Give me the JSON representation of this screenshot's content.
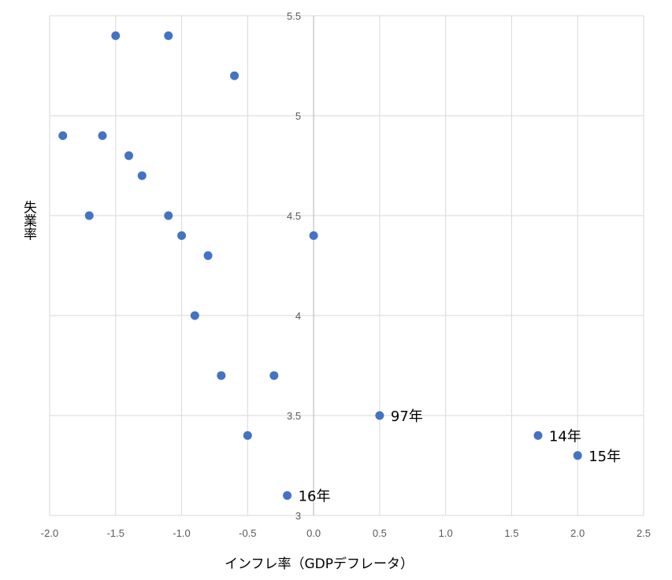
{
  "chart_data": {
    "type": "scatter",
    "title": "",
    "xlabel": "インフレ率（GDPデフレータ）",
    "ylabel": "失業率",
    "xlim": [
      -2.0,
      2.5
    ],
    "ylim": [
      3.0,
      5.5
    ],
    "x_ticks": [
      "-2.0",
      "-1.5",
      "-1.0",
      "-0.5",
      "0.0",
      "0.5",
      "1.0",
      "1.5",
      "2.0",
      "2.5"
    ],
    "y_ticks": [
      "3",
      "3.5",
      "4",
      "4.5",
      "5",
      "5.5"
    ],
    "grid": true,
    "marker_color": "#4472c4",
    "points": [
      {
        "x": -1.5,
        "y": 5.4,
        "label": ""
      },
      {
        "x": -1.1,
        "y": 5.4,
        "label": ""
      },
      {
        "x": -0.6,
        "y": 5.2,
        "label": ""
      },
      {
        "x": -1.9,
        "y": 4.9,
        "label": ""
      },
      {
        "x": -1.6,
        "y": 4.9,
        "label": ""
      },
      {
        "x": -1.4,
        "y": 4.8,
        "label": ""
      },
      {
        "x": -1.3,
        "y": 4.7,
        "label": ""
      },
      {
        "x": -1.7,
        "y": 4.5,
        "label": ""
      },
      {
        "x": -1.1,
        "y": 4.5,
        "label": ""
      },
      {
        "x": -1.0,
        "y": 4.4,
        "label": ""
      },
      {
        "x": 0.0,
        "y": 4.4,
        "label": ""
      },
      {
        "x": -0.8,
        "y": 4.3,
        "label": ""
      },
      {
        "x": -0.9,
        "y": 4.0,
        "label": ""
      },
      {
        "x": -0.7,
        "y": 3.7,
        "label": ""
      },
      {
        "x": -0.3,
        "y": 3.7,
        "label": ""
      },
      {
        "x": 0.5,
        "y": 3.5,
        "label": "97年"
      },
      {
        "x": -0.5,
        "y": 3.4,
        "label": ""
      },
      {
        "x": 1.7,
        "y": 3.4,
        "label": "14年"
      },
      {
        "x": 2.0,
        "y": 3.3,
        "label": "15年"
      },
      {
        "x": -0.2,
        "y": 3.1,
        "label": "16年"
      }
    ]
  }
}
